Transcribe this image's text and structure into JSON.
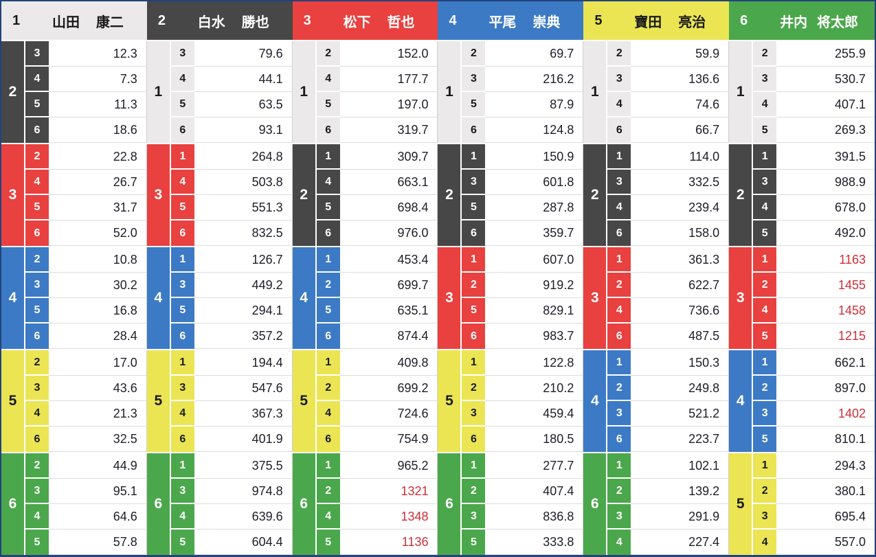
{
  "racer_colors": {
    "1": {
      "bg": "#ebe9e9",
      "fg": "#1a1a1a"
    },
    "2": {
      "bg": "#474747",
      "fg": "#ffffff"
    },
    "3": {
      "bg": "#e8413f",
      "fg": "#ffffff"
    },
    "4": {
      "bg": "#3c7ac5",
      "fg": "#ffffff"
    },
    "5": {
      "bg": "#ebe553",
      "fg": "#1a1a1a"
    },
    "6": {
      "bg": "#4ba74b",
      "fg": "#ffffff"
    }
  },
  "style_colors": {
    "table_border": "#24427c",
    "odds_text": "#1d1d28",
    "hot_odds_text": "#ce2e38",
    "row_separator": "#dcdcdc"
  },
  "columns": [
    {
      "racer_no": "1",
      "family_name": "山田",
      "given_name": "康二",
      "groups": [
        {
          "second_no": "2",
          "rows": [
            {
              "third_no": "3",
              "odds": "12.3",
              "red": false
            },
            {
              "third_no": "4",
              "odds": "7.3",
              "red": false
            },
            {
              "third_no": "5",
              "odds": "11.3",
              "red": false
            },
            {
              "third_no": "6",
              "odds": "18.6",
              "red": false
            }
          ]
        },
        {
          "second_no": "3",
          "rows": [
            {
              "third_no": "2",
              "odds": "22.8",
              "red": false
            },
            {
              "third_no": "4",
              "odds": "26.7",
              "red": false
            },
            {
              "third_no": "5",
              "odds": "31.7",
              "red": false
            },
            {
              "third_no": "6",
              "odds": "52.0",
              "red": false
            }
          ]
        },
        {
          "second_no": "4",
          "rows": [
            {
              "third_no": "2",
              "odds": "10.8",
              "red": false
            },
            {
              "third_no": "3",
              "odds": "30.2",
              "red": false
            },
            {
              "third_no": "5",
              "odds": "16.8",
              "red": false
            },
            {
              "third_no": "6",
              "odds": "28.4",
              "red": false
            }
          ]
        },
        {
          "second_no": "5",
          "rows": [
            {
              "third_no": "2",
              "odds": "17.0",
              "red": false
            },
            {
              "third_no": "3",
              "odds": "43.6",
              "red": false
            },
            {
              "third_no": "4",
              "odds": "21.3",
              "red": false
            },
            {
              "third_no": "6",
              "odds": "32.5",
              "red": false
            }
          ]
        },
        {
          "second_no": "6",
          "rows": [
            {
              "third_no": "2",
              "odds": "44.9",
              "red": false
            },
            {
              "third_no": "3",
              "odds": "95.1",
              "red": false
            },
            {
              "third_no": "4",
              "odds": "64.6",
              "red": false
            },
            {
              "third_no": "5",
              "odds": "57.8",
              "red": false
            }
          ]
        }
      ]
    },
    {
      "racer_no": "2",
      "family_name": "白水",
      "given_name": "勝也",
      "groups": [
        {
          "second_no": "1",
          "rows": [
            {
              "third_no": "3",
              "odds": "79.6",
              "red": false
            },
            {
              "third_no": "4",
              "odds": "44.1",
              "red": false
            },
            {
              "third_no": "5",
              "odds": "63.5",
              "red": false
            },
            {
              "third_no": "6",
              "odds": "93.1",
              "red": false
            }
          ]
        },
        {
          "second_no": "3",
          "rows": [
            {
              "third_no": "1",
              "odds": "264.8",
              "red": false
            },
            {
              "third_no": "4",
              "odds": "503.8",
              "red": false
            },
            {
              "third_no": "5",
              "odds": "551.3",
              "red": false
            },
            {
              "third_no": "6",
              "odds": "832.5",
              "red": false
            }
          ]
        },
        {
          "second_no": "4",
          "rows": [
            {
              "third_no": "1",
              "odds": "126.7",
              "red": false
            },
            {
              "third_no": "3",
              "odds": "449.2",
              "red": false
            },
            {
              "third_no": "5",
              "odds": "294.1",
              "red": false
            },
            {
              "third_no": "6",
              "odds": "357.2",
              "red": false
            }
          ]
        },
        {
          "second_no": "5",
          "rows": [
            {
              "third_no": "1",
              "odds": "194.4",
              "red": false
            },
            {
              "third_no": "3",
              "odds": "547.6",
              "red": false
            },
            {
              "third_no": "4",
              "odds": "367.3",
              "red": false
            },
            {
              "third_no": "6",
              "odds": "401.9",
              "red": false
            }
          ]
        },
        {
          "second_no": "6",
          "rows": [
            {
              "third_no": "1",
              "odds": "375.5",
              "red": false
            },
            {
              "third_no": "3",
              "odds": "974.8",
              "red": false
            },
            {
              "third_no": "4",
              "odds": "639.6",
              "red": false
            },
            {
              "third_no": "5",
              "odds": "604.4",
              "red": false
            }
          ]
        }
      ]
    },
    {
      "racer_no": "3",
      "family_name": "松下",
      "given_name": "哲也",
      "groups": [
        {
          "second_no": "1",
          "rows": [
            {
              "third_no": "2",
              "odds": "152.0",
              "red": false
            },
            {
              "third_no": "4",
              "odds": "177.7",
              "red": false
            },
            {
              "third_no": "5",
              "odds": "197.0",
              "red": false
            },
            {
              "third_no": "6",
              "odds": "319.7",
              "red": false
            }
          ]
        },
        {
          "second_no": "2",
          "rows": [
            {
              "third_no": "1",
              "odds": "309.7",
              "red": false
            },
            {
              "third_no": "4",
              "odds": "663.1",
              "red": false
            },
            {
              "third_no": "5",
              "odds": "698.4",
              "red": false
            },
            {
              "third_no": "6",
              "odds": "976.0",
              "red": false
            }
          ]
        },
        {
          "second_no": "4",
          "rows": [
            {
              "third_no": "1",
              "odds": "453.4",
              "red": false
            },
            {
              "third_no": "2",
              "odds": "699.7",
              "red": false
            },
            {
              "third_no": "5",
              "odds": "635.1",
              "red": false
            },
            {
              "third_no": "6",
              "odds": "874.4",
              "red": false
            }
          ]
        },
        {
          "second_no": "5",
          "rows": [
            {
              "third_no": "1",
              "odds": "409.8",
              "red": false
            },
            {
              "third_no": "2",
              "odds": "699.2",
              "red": false
            },
            {
              "third_no": "4",
              "odds": "724.6",
              "red": false
            },
            {
              "third_no": "6",
              "odds": "754.9",
              "red": false
            }
          ]
        },
        {
          "second_no": "6",
          "rows": [
            {
              "third_no": "1",
              "odds": "965.2",
              "red": false
            },
            {
              "third_no": "2",
              "odds": "1321",
              "red": true
            },
            {
              "third_no": "4",
              "odds": "1348",
              "red": true
            },
            {
              "third_no": "5",
              "odds": "1136",
              "red": true
            }
          ]
        }
      ]
    },
    {
      "racer_no": "4",
      "family_name": "平尾",
      "given_name": "崇典",
      "groups": [
        {
          "second_no": "1",
          "rows": [
            {
              "third_no": "2",
              "odds": "69.7",
              "red": false
            },
            {
              "third_no": "3",
              "odds": "216.2",
              "red": false
            },
            {
              "third_no": "5",
              "odds": "87.9",
              "red": false
            },
            {
              "third_no": "6",
              "odds": "124.8",
              "red": false
            }
          ]
        },
        {
          "second_no": "2",
          "rows": [
            {
              "third_no": "1",
              "odds": "150.9",
              "red": false
            },
            {
              "third_no": "3",
              "odds": "601.8",
              "red": false
            },
            {
              "third_no": "5",
              "odds": "287.8",
              "red": false
            },
            {
              "third_no": "6",
              "odds": "359.7",
              "red": false
            }
          ]
        },
        {
          "second_no": "3",
          "rows": [
            {
              "third_no": "1",
              "odds": "607.0",
              "red": false
            },
            {
              "third_no": "2",
              "odds": "919.2",
              "red": false
            },
            {
              "third_no": "5",
              "odds": "829.1",
              "red": false
            },
            {
              "third_no": "6",
              "odds": "983.7",
              "red": false
            }
          ]
        },
        {
          "second_no": "5",
          "rows": [
            {
              "third_no": "1",
              "odds": "122.8",
              "red": false
            },
            {
              "third_no": "2",
              "odds": "210.2",
              "red": false
            },
            {
              "third_no": "3",
              "odds": "459.4",
              "red": false
            },
            {
              "third_no": "6",
              "odds": "180.5",
              "red": false
            }
          ]
        },
        {
          "second_no": "6",
          "rows": [
            {
              "third_no": "1",
              "odds": "277.7",
              "red": false
            },
            {
              "third_no": "2",
              "odds": "407.4",
              "red": false
            },
            {
              "third_no": "3",
              "odds": "836.8",
              "red": false
            },
            {
              "third_no": "5",
              "odds": "333.8",
              "red": false
            }
          ]
        }
      ]
    },
    {
      "racer_no": "5",
      "family_name": "寶田",
      "given_name": "亮治",
      "groups": [
        {
          "second_no": "1",
          "rows": [
            {
              "third_no": "2",
              "odds": "59.9",
              "red": false
            },
            {
              "third_no": "3",
              "odds": "136.6",
              "red": false
            },
            {
              "third_no": "4",
              "odds": "74.6",
              "red": false
            },
            {
              "third_no": "6",
              "odds": "66.7",
              "red": false
            }
          ]
        },
        {
          "second_no": "2",
          "rows": [
            {
              "third_no": "1",
              "odds": "114.0",
              "red": false
            },
            {
              "third_no": "3",
              "odds": "332.5",
              "red": false
            },
            {
              "third_no": "4",
              "odds": "239.4",
              "red": false
            },
            {
              "third_no": "6",
              "odds": "158.0",
              "red": false
            }
          ]
        },
        {
          "second_no": "3",
          "rows": [
            {
              "third_no": "1",
              "odds": "361.3",
              "red": false
            },
            {
              "third_no": "2",
              "odds": "622.7",
              "red": false
            },
            {
              "third_no": "4",
              "odds": "736.6",
              "red": false
            },
            {
              "third_no": "6",
              "odds": "487.5",
              "red": false
            }
          ]
        },
        {
          "second_no": "4",
          "rows": [
            {
              "third_no": "1",
              "odds": "150.3",
              "red": false
            },
            {
              "third_no": "2",
              "odds": "249.8",
              "red": false
            },
            {
              "third_no": "3",
              "odds": "521.2",
              "red": false
            },
            {
              "third_no": "6",
              "odds": "223.7",
              "red": false
            }
          ]
        },
        {
          "second_no": "6",
          "rows": [
            {
              "third_no": "1",
              "odds": "102.1",
              "red": false
            },
            {
              "third_no": "2",
              "odds": "139.2",
              "red": false
            },
            {
              "third_no": "3",
              "odds": "291.9",
              "red": false
            },
            {
              "third_no": "4",
              "odds": "227.4",
              "red": false
            }
          ]
        }
      ]
    },
    {
      "racer_no": "6",
      "family_name": "井内",
      "given_name": "将太郎",
      "groups": [
        {
          "second_no": "1",
          "rows": [
            {
              "third_no": "2",
              "odds": "255.9",
              "red": false
            },
            {
              "third_no": "3",
              "odds": "530.7",
              "red": false
            },
            {
              "third_no": "4",
              "odds": "407.1",
              "red": false
            },
            {
              "third_no": "5",
              "odds": "269.3",
              "red": false
            }
          ]
        },
        {
          "second_no": "2",
          "rows": [
            {
              "third_no": "1",
              "odds": "391.5",
              "red": false
            },
            {
              "third_no": "3",
              "odds": "988.9",
              "red": false
            },
            {
              "third_no": "4",
              "odds": "678.0",
              "red": false
            },
            {
              "third_no": "5",
              "odds": "492.0",
              "red": false
            }
          ]
        },
        {
          "second_no": "3",
          "rows": [
            {
              "third_no": "1",
              "odds": "1163",
              "red": true
            },
            {
              "third_no": "2",
              "odds": "1455",
              "red": true
            },
            {
              "third_no": "4",
              "odds": "1458",
              "red": true
            },
            {
              "third_no": "5",
              "odds": "1215",
              "red": true
            }
          ]
        },
        {
          "second_no": "4",
          "rows": [
            {
              "third_no": "1",
              "odds": "662.1",
              "red": false
            },
            {
              "third_no": "2",
              "odds": "897.0",
              "red": false
            },
            {
              "third_no": "3",
              "odds": "1402",
              "red": true
            },
            {
              "third_no": "5",
              "odds": "810.1",
              "red": false
            }
          ]
        },
        {
          "second_no": "5",
          "rows": [
            {
              "third_no": "1",
              "odds": "294.3",
              "red": false
            },
            {
              "third_no": "2",
              "odds": "380.1",
              "red": false
            },
            {
              "third_no": "3",
              "odds": "695.4",
              "red": false
            },
            {
              "third_no": "4",
              "odds": "557.0",
              "red": false
            }
          ]
        }
      ]
    }
  ]
}
